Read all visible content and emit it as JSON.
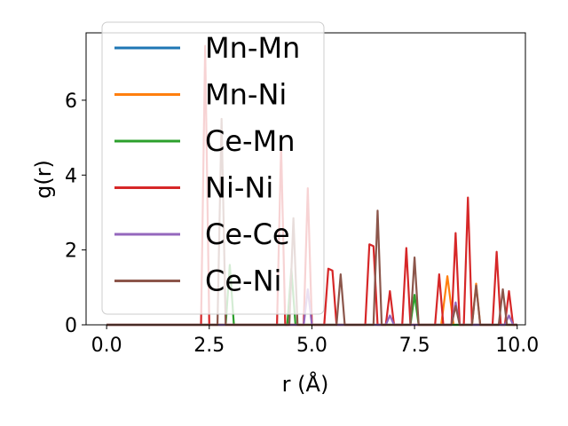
{
  "chart_data": {
    "type": "line",
    "xlabel": "r (Å)",
    "ylabel": "g(r)",
    "xlim": [
      -0.5,
      10.2
    ],
    "ylim": [
      0,
      7.8
    ],
    "xticks": [
      0.0,
      2.5,
      5.0,
      7.5,
      10.0
    ],
    "xtick_labels": [
      "0.0",
      "2.5",
      "5.0",
      "7.5",
      "10.0"
    ],
    "yticks": [
      0,
      2,
      4,
      6
    ],
    "ytick_labels": [
      "0",
      "2",
      "4",
      "6"
    ],
    "grid": false,
    "legend_position": "upper-left",
    "series": [
      {
        "name": "Mn-Mn",
        "color": "#1f77b4",
        "points": [
          [
            0.0,
            0
          ],
          [
            10.0,
            0
          ]
        ]
      },
      {
        "name": "Mn-Ni",
        "color": "#ff7f0e",
        "points": [
          [
            0.0,
            0
          ],
          [
            8.15,
            0
          ],
          [
            8.3,
            1.3
          ],
          [
            8.45,
            0
          ],
          [
            8.9,
            0
          ],
          [
            9.0,
            1.1
          ],
          [
            9.1,
            0
          ],
          [
            10.0,
            0
          ]
        ]
      },
      {
        "name": "Ce-Mn",
        "color": "#2ca02c",
        "points": [
          [
            0.0,
            0
          ],
          [
            2.9,
            0
          ],
          [
            3.0,
            1.6
          ],
          [
            3.1,
            0
          ],
          [
            4.4,
            0
          ],
          [
            4.5,
            1.5
          ],
          [
            4.6,
            0
          ],
          [
            7.4,
            0
          ],
          [
            7.5,
            0.8
          ],
          [
            7.6,
            0
          ],
          [
            10.0,
            0
          ]
        ]
      },
      {
        "name": "Ni-Ni",
        "color": "#d62728",
        "points": [
          [
            0.0,
            0
          ],
          [
            2.3,
            0
          ],
          [
            2.4,
            7.45
          ],
          [
            2.5,
            0
          ],
          [
            4.15,
            0
          ],
          [
            4.25,
            4.8
          ],
          [
            4.35,
            0
          ],
          [
            4.8,
            0
          ],
          [
            4.9,
            3.65
          ],
          [
            5.0,
            0
          ],
          [
            5.3,
            0
          ],
          [
            5.4,
            1.5
          ],
          [
            5.5,
            1.45
          ],
          [
            5.6,
            0
          ],
          [
            6.3,
            0
          ],
          [
            6.4,
            2.15
          ],
          [
            6.5,
            2.1
          ],
          [
            6.6,
            0
          ],
          [
            6.8,
            0
          ],
          [
            6.9,
            0.9
          ],
          [
            7.0,
            0
          ],
          [
            7.2,
            0
          ],
          [
            7.3,
            2.05
          ],
          [
            7.4,
            0
          ],
          [
            8.0,
            0
          ],
          [
            8.1,
            1.35
          ],
          [
            8.2,
            0
          ],
          [
            8.4,
            0
          ],
          [
            8.5,
            2.45
          ],
          [
            8.6,
            0
          ],
          [
            8.7,
            0
          ],
          [
            8.8,
            3.4
          ],
          [
            8.9,
            0
          ],
          [
            9.4,
            0
          ],
          [
            9.5,
            1.95
          ],
          [
            9.6,
            0
          ],
          [
            9.7,
            0
          ],
          [
            9.8,
            0.9
          ],
          [
            9.9,
            0
          ],
          [
            10.0,
            0
          ]
        ]
      },
      {
        "name": "Ce-Ce",
        "color": "#9467bd",
        "points": [
          [
            0.0,
            0
          ],
          [
            4.8,
            0
          ],
          [
            4.9,
            0.95
          ],
          [
            5.0,
            0
          ],
          [
            6.8,
            0
          ],
          [
            6.9,
            0.25
          ],
          [
            7.0,
            0
          ],
          [
            8.4,
            0
          ],
          [
            8.5,
            0.6
          ],
          [
            8.6,
            0
          ],
          [
            9.7,
            0
          ],
          [
            9.8,
            0.25
          ],
          [
            9.9,
            0
          ],
          [
            10.0,
            0
          ]
        ]
      },
      {
        "name": "Ce-Ni",
        "color": "#8c564b",
        "points": [
          [
            0.0,
            0
          ],
          [
            2.7,
            0
          ],
          [
            2.8,
            5.5
          ],
          [
            2.9,
            0
          ],
          [
            4.45,
            0
          ],
          [
            4.55,
            2.85
          ],
          [
            4.65,
            0
          ],
          [
            5.6,
            0
          ],
          [
            5.7,
            1.35
          ],
          [
            5.8,
            0
          ],
          [
            6.5,
            0
          ],
          [
            6.6,
            3.05
          ],
          [
            6.7,
            0
          ],
          [
            7.4,
            0
          ],
          [
            7.5,
            1.8
          ],
          [
            7.6,
            0
          ],
          [
            8.4,
            0
          ],
          [
            8.5,
            0.5
          ],
          [
            8.6,
            0
          ],
          [
            8.9,
            0
          ],
          [
            9.0,
            1.05
          ],
          [
            9.1,
            0
          ],
          [
            9.55,
            0
          ],
          [
            9.65,
            0.95
          ],
          [
            9.75,
            0
          ],
          [
            10.0,
            0
          ]
        ]
      }
    ]
  }
}
